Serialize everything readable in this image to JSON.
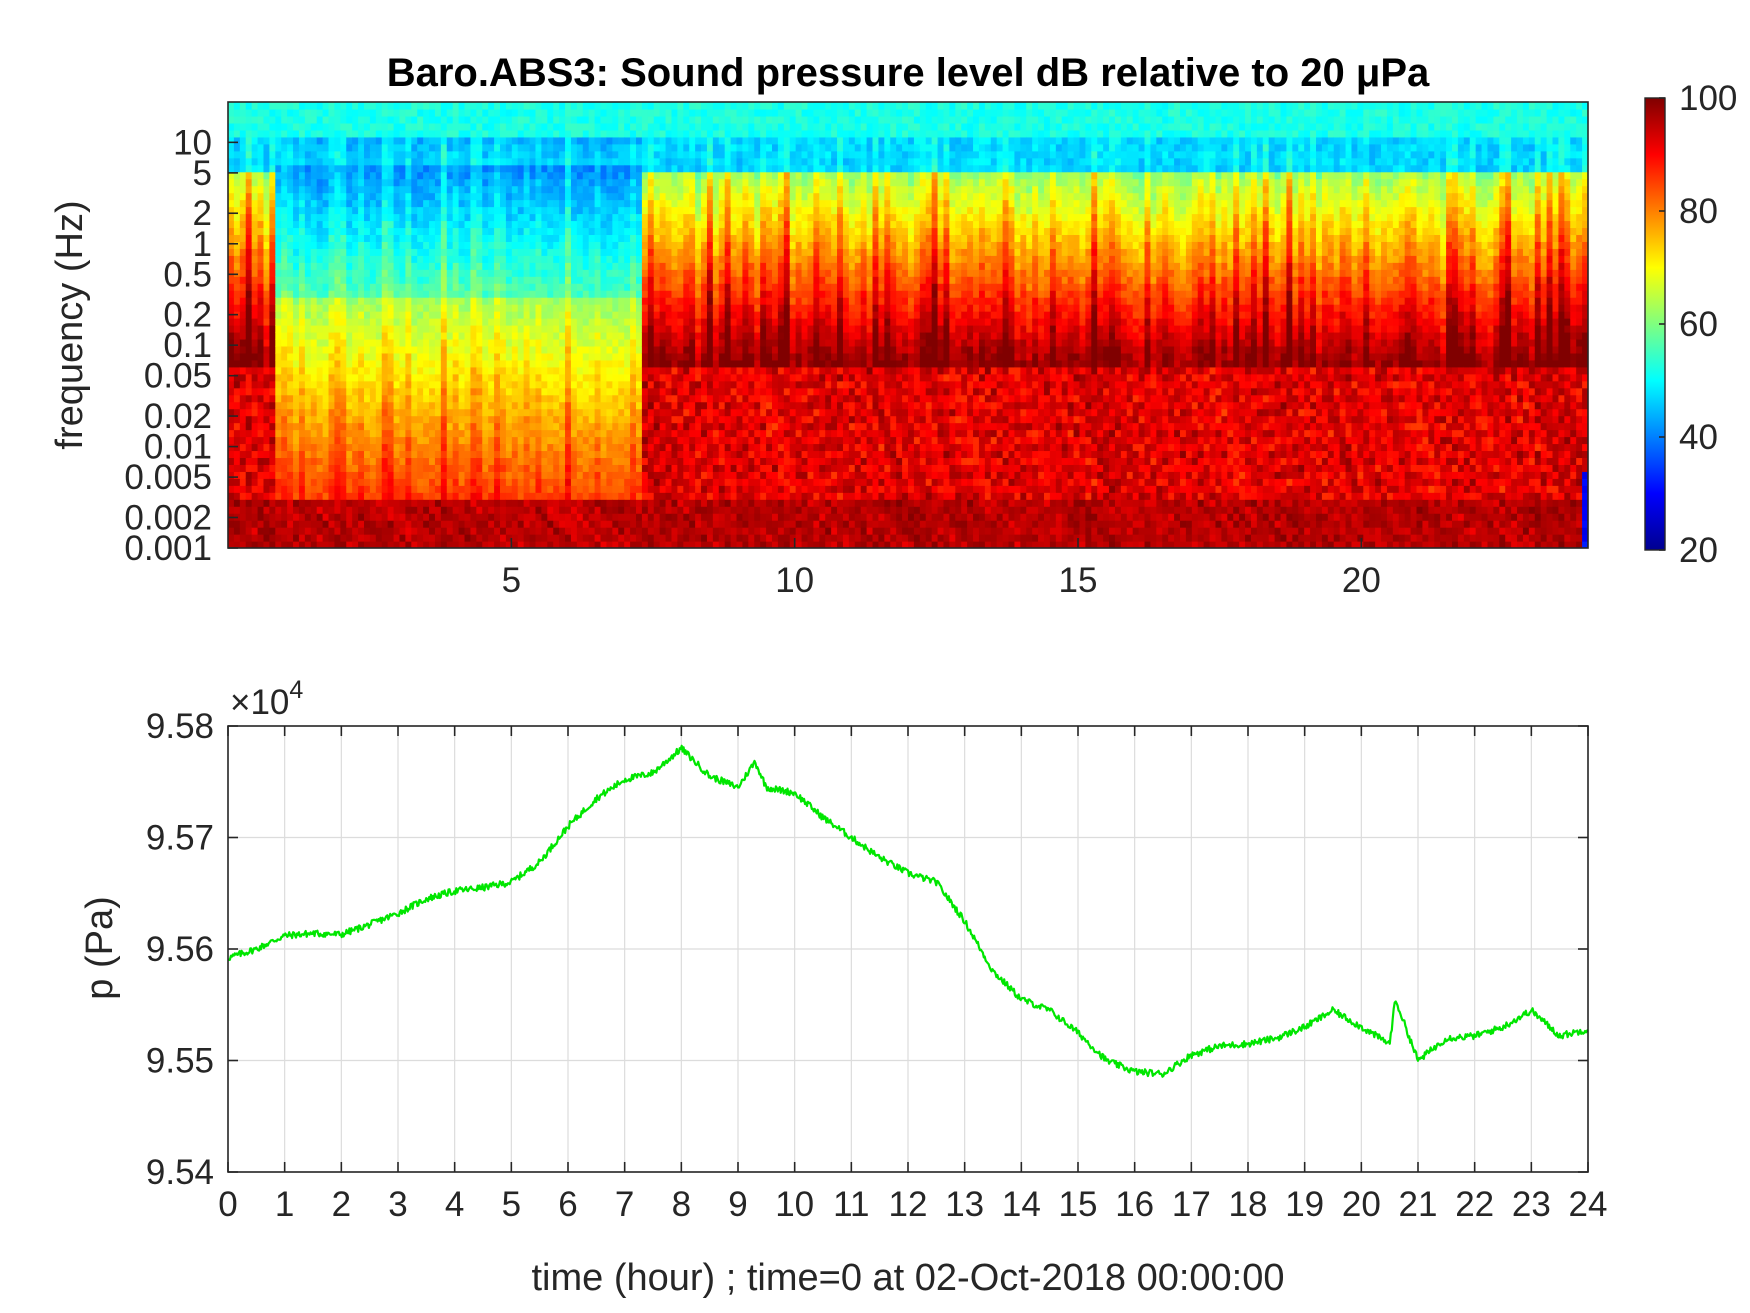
{
  "figure": {
    "title": "Baro.ABS3: Sound pressure level dB relative to 20 μPa",
    "xlabel": "time (hour) ; time=0 at 02-Oct-2018 00:00:00"
  },
  "chart_data": [
    {
      "type": "heatmap",
      "title": "Baro.ABS3: Sound pressure level dB relative to 20 μPa",
      "xlabel": "",
      "ylabel": "frequency (Hz)",
      "x_ticks": [
        "5",
        "10",
        "15",
        "20"
      ],
      "x_tick_values": [
        5,
        10,
        15,
        20
      ],
      "xlim": [
        0,
        24
      ],
      "y_scale": "log",
      "y_ticks": [
        "10",
        "5",
        "2",
        "1",
        "0.5",
        "0.2",
        "0.1",
        "0.05",
        "0.02",
        "0.01",
        "0.005",
        "0.002",
        "0.001"
      ],
      "y_tick_values": [
        10,
        5,
        2,
        1,
        0.5,
        0.2,
        0.1,
        0.05,
        0.02,
        0.01,
        0.005,
        0.002,
        0.001
      ],
      "ylim": [
        0.001,
        25
      ],
      "colormap": "jet",
      "colorbar": {
        "range": [
          20,
          100
        ],
        "ticks": [
          "100",
          "80",
          "60",
          "40",
          "20"
        ],
        "tick_values": [
          100,
          80,
          60,
          40,
          20
        ]
      }
    },
    {
      "type": "line",
      "title": "",
      "xlabel": "time (hour) ; time=0 at 02-Oct-2018 00:00:00",
      "ylabel": "p (Pa)",
      "y_multiplier": {
        "base": "×10",
        "exponent": "4"
      },
      "x_ticks": [
        "0",
        "1",
        "2",
        "3",
        "4",
        "5",
        "6",
        "7",
        "8",
        "9",
        "10",
        "11",
        "12",
        "13",
        "14",
        "15",
        "16",
        "17",
        "18",
        "19",
        "20",
        "21",
        "22",
        "23",
        "24"
      ],
      "xlim": [
        0,
        24
      ],
      "y_ticks": [
        "9.58",
        "9.57",
        "9.56",
        "9.55",
        "9.54"
      ],
      "y_tick_values": [
        95800,
        95700,
        95600,
        95500,
        95400
      ],
      "ylim": [
        95400,
        95800
      ],
      "grid": true,
      "series": [
        {
          "color": "#00e600",
          "x": [
            0,
            0.5,
            1,
            1.5,
            2,
            2.5,
            3,
            3.5,
            4,
            4.5,
            5,
            5.5,
            6,
            6.5,
            7,
            7.5,
            8,
            8.5,
            9,
            9.3,
            9.5,
            10,
            10.5,
            11,
            11.5,
            12,
            12.5,
            13,
            13.5,
            14,
            14.5,
            15,
            15.5,
            16,
            16.5,
            17,
            17.5,
            18,
            18.5,
            19,
            19.5,
            20,
            20.5,
            20.6,
            21,
            21.5,
            22,
            22.5,
            23,
            23.5,
            24
          ],
          "y": [
            95592,
            95600,
            95612,
            95614,
            95613,
            95622,
            95632,
            95645,
            95652,
            95655,
            95660,
            95678,
            95710,
            95735,
            95752,
            95758,
            95780,
            95755,
            95745,
            95768,
            95745,
            95740,
            95718,
            95700,
            95682,
            95668,
            95660,
            95625,
            95580,
            95555,
            95545,
            95525,
            95500,
            95490,
            95488,
            95505,
            95513,
            95515,
            95520,
            95530,
            95545,
            95530,
            95515,
            95555,
            95500,
            95520,
            95522,
            95530,
            95545,
            95522,
            95528
          ]
        }
      ]
    }
  ]
}
